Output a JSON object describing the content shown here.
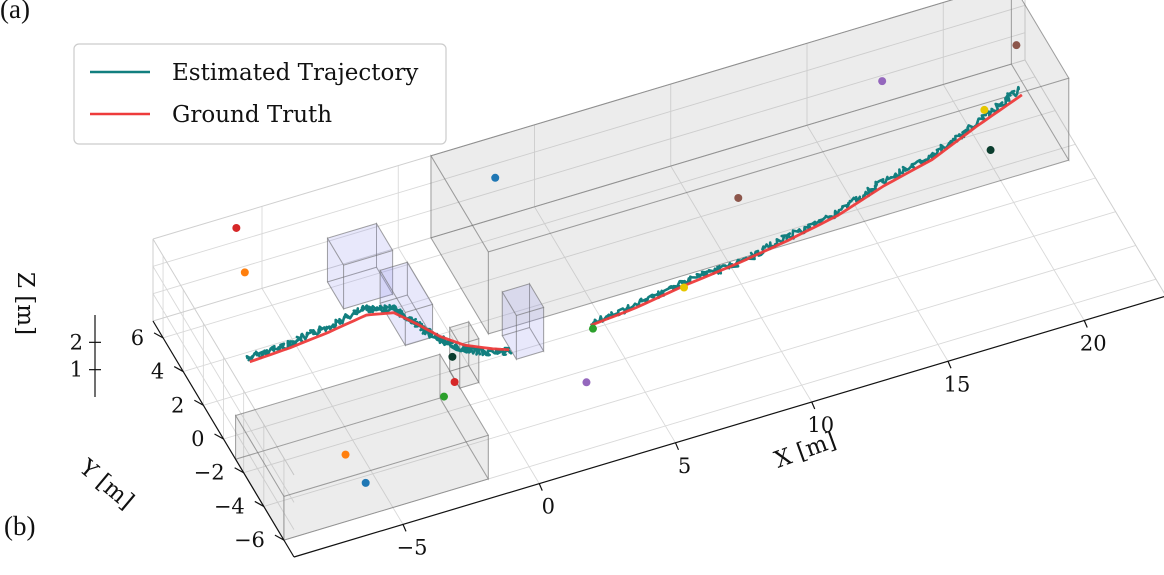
{
  "panel_labels": {
    "top": "(a)",
    "bottom": "(b)"
  },
  "legend": {
    "placement": "top-left",
    "items": [
      {
        "label": "Estimated Trajectory",
        "color": "#127f7f"
      },
      {
        "label": "Ground Truth",
        "color": "#ee3b3b"
      }
    ]
  },
  "chart_data": {
    "type": "3d-scatter-line",
    "title": "",
    "xlabel": "X [m]",
    "ylabel": "Y [m]",
    "zlabel": "Z [m]",
    "x_ticks": [
      -5,
      0,
      5,
      10,
      15,
      20
    ],
    "y_ticks": [
      -6,
      -4,
      -2,
      0,
      2,
      4,
      6
    ],
    "z_ticks": [
      1,
      2
    ],
    "xlim": [
      -9,
      23
    ],
    "ylim": [
      -7,
      7
    ],
    "zlim": [
      0,
      3
    ],
    "grid": true,
    "obstacles": [
      {
        "name": "box-large-back",
        "min": [
          1.2,
          1.3,
          0
        ],
        "max": [
          22.5,
          7.0,
          3.0
        ],
        "color": "#a0a0a0"
      },
      {
        "name": "box-front-left",
        "min": [
          -9.0,
          -6.0,
          0
        ],
        "max": [
          -1.5,
          -1.2,
          1.6
        ],
        "color": "#a0a0a0"
      },
      {
        "name": "pillar-small",
        "min": [
          -0.7,
          -1.0,
          0
        ],
        "max": [
          0.0,
          0.0,
          1.6
        ],
        "color": "#a0a0a0"
      },
      {
        "name": "panel-blue-1",
        "min": [
          -3.3,
          3.5,
          0.9
        ],
        "max": [
          -1.5,
          5.1,
          2.5
        ],
        "color": "#9090ee"
      },
      {
        "name": "panel-blue-2",
        "min": [
          -1.7,
          1.7,
          0.2
        ],
        "max": [
          -0.7,
          4.2,
          1.4
        ],
        "color": "#9090ee"
      },
      {
        "name": "panel-blue-3",
        "min": [
          1.6,
          -0.4,
          0
        ],
        "max": [
          2.6,
          1.0,
          1.6
        ],
        "color": "#9090ee"
      }
    ],
    "series": [
      {
        "name": "Estimated Trajectory",
        "color": "#127f7f",
        "x": [
          -7.0,
          -5.5,
          -4.0,
          -2.5,
          -1.6,
          -1.2,
          -0.8,
          -0.3,
          0.4,
          1.3
        ],
        "y": [
          3.0,
          3.1,
          3.3,
          3.6,
          3.2,
          2.2,
          1.2,
          0.4,
          -0.2,
          -0.6
        ],
        "z": [
          0.5,
          0.5,
          0.55,
          0.6,
          0.6,
          0.6,
          0.55,
          0.5,
          0.5,
          0.5
        ]
      },
      {
        "name": "Estimated Trajectory",
        "color": "#127f7f",
        "x": [
          4.3,
          6.0,
          8.0,
          10.0,
          12.0,
          14.0,
          16.0,
          18.0,
          20.0,
          22.0
        ],
        "y": [
          -0.4,
          -0.2,
          0.2,
          0.4,
          0.9,
          1.3,
          2.2,
          2.8,
          3.8,
          4.8
        ],
        "z": [
          0.5,
          0.5,
          0.55,
          0.5,
          0.55,
          0.6,
          0.6,
          0.55,
          0.5,
          0.6
        ]
      },
      {
        "name": "Ground Truth",
        "color": "#ee3b3b",
        "x": [
          -7.0,
          -5.5,
          -4.0,
          -2.5,
          -1.6,
          -1.1,
          -0.6,
          0.0,
          0.8,
          1.3
        ],
        "y": [
          2.8,
          2.9,
          3.1,
          3.4,
          3.1,
          2.2,
          1.2,
          0.4,
          -0.2,
          -0.5
        ],
        "z": [
          0.5,
          0.5,
          0.5,
          0.5,
          0.5,
          0.5,
          0.5,
          0.5,
          0.5,
          0.5
        ]
      },
      {
        "name": "Ground Truth",
        "color": "#ee3b3b",
        "x": [
          4.3,
          6.0,
          8.0,
          10.0,
          12.0,
          14.0,
          16.0,
          18.0,
          20.0,
          22.0
        ],
        "y": [
          -0.5,
          -0.3,
          0.1,
          0.4,
          0.8,
          1.3,
          2.1,
          2.7,
          3.7,
          4.6
        ],
        "z": [
          0.5,
          0.5,
          0.5,
          0.5,
          0.5,
          0.5,
          0.5,
          0.5,
          0.5,
          0.5
        ]
      }
    ],
    "landmarks": [
      {
        "color": "#d62728",
        "x": -6.2,
        "y": 6.3,
        "z": 3.0
      },
      {
        "color": "#1f77b4",
        "x": 3.3,
        "y": 6.3,
        "z": 2.0
      },
      {
        "color": "#ff7f0e",
        "x": -6.0,
        "y": 6.0,
        "z": 1.5
      },
      {
        "color": "#9467bd",
        "x": 17.5,
        "y": 6.3,
        "z": 1.3
      },
      {
        "color": "#1f77b4",
        "x": -6.0,
        "y": -6.0,
        "z": 1.2
      },
      {
        "color": "#ff7f0e",
        "x": -6.0,
        "y": -4.0,
        "z": 1.0
      },
      {
        "color": "#8c564b",
        "x": 11.0,
        "y": 3.0,
        "z": 1.0
      },
      {
        "color": "#8c564b",
        "x": 22.5,
        "y": 6.5,
        "z": 1.0
      },
      {
        "color": "#e6c700",
        "x": 20.4,
        "y": 4.0,
        "z": 0.8
      },
      {
        "color": "#0b3d2e",
        "x": 20.0,
        "y": 2.3,
        "z": 0.5
      },
      {
        "color": "#2ca02c",
        "x": 4.3,
        "y": -0.7,
        "z": 0.5
      },
      {
        "color": "#e6c700",
        "x": 7.9,
        "y": 0.0,
        "z": 0.5
      },
      {
        "color": "#0b3d2e",
        "x": -0.6,
        "y": 0.0,
        "z": 0.5
      },
      {
        "color": "#d62728",
        "x": -1.0,
        "y": -1.3,
        "z": 0.5
      },
      {
        "color": "#2ca02c",
        "x": -1.5,
        "y": -1.6,
        "z": 0.3
      },
      {
        "color": "#9467bd",
        "x": 3.1,
        "y": -3.3,
        "z": 0.5
      }
    ]
  }
}
